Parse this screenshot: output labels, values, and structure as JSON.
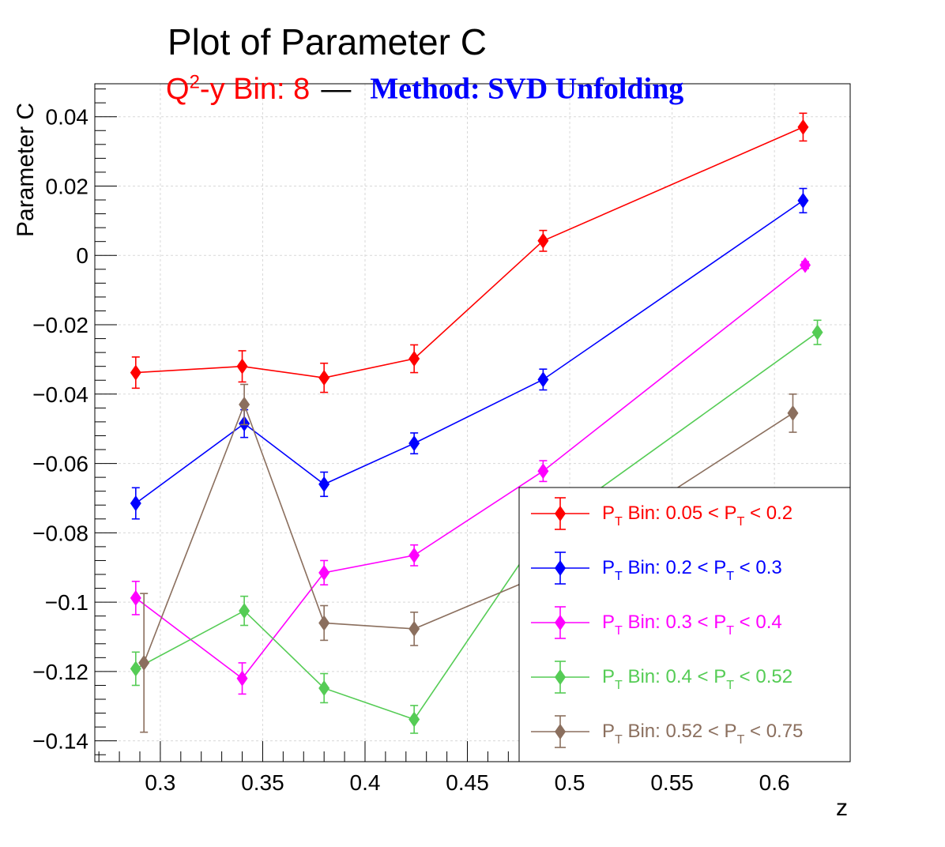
{
  "chart_data": {
    "type": "line",
    "title": "Plot of Parameter C",
    "subtitle": {
      "bin_prefix": "Q",
      "bin_sup": "2",
      "bin_rest": "-y Bin: 8",
      "separator": "—",
      "method": "Method: SVD Unfolding"
    },
    "xlabel": "z",
    "ylabel": "Parameter C",
    "xlim": [
      0.268,
      0.637
    ],
    "ylim": [
      -0.146,
      0.0495
    ],
    "x_ticks": [
      "0.3",
      "0.35",
      "0.4",
      "0.45",
      "0.5",
      "0.55",
      "0.6"
    ],
    "y_ticks": [
      "0.04",
      "0.02",
      "0",
      "−0.02",
      "−0.04",
      "−0.06",
      "−0.08",
      "−0.1",
      "−0.12",
      "−0.14"
    ],
    "grid": true,
    "legend_placement": "bottom-right",
    "series": [
      {
        "label_pre": "P",
        "label_sub1": "T",
        "label_mid": " Bin: 0.05 < P",
        "label_sub2": "T",
        "label_post": " < 0.2",
        "color": "#ff0000",
        "points": [
          {
            "x": 0.288,
            "y": -0.0338,
            "err": 0.0045
          },
          {
            "x": 0.34,
            "y": -0.032,
            "err": 0.0045
          },
          {
            "x": 0.38,
            "y": -0.0353,
            "err": 0.0042
          },
          {
            "x": 0.424,
            "y": -0.0298,
            "err": 0.004
          },
          {
            "x": 0.487,
            "y": 0.0042,
            "err": 0.003
          },
          {
            "x": 0.614,
            "y": 0.037,
            "err": 0.004
          }
        ]
      },
      {
        "label_pre": "P",
        "label_sub1": "T",
        "label_mid": " Bin: 0.2 < P",
        "label_sub2": "T",
        "label_post": " < 0.3",
        "color": "#0000ff",
        "points": [
          {
            "x": 0.288,
            "y": -0.0715,
            "err": 0.0045
          },
          {
            "x": 0.341,
            "y": -0.0485,
            "err": 0.004
          },
          {
            "x": 0.38,
            "y": -0.066,
            "err": 0.0035
          },
          {
            "x": 0.424,
            "y": -0.0542,
            "err": 0.003
          },
          {
            "x": 0.487,
            "y": -0.0358,
            "err": 0.003
          },
          {
            "x": 0.614,
            "y": 0.0158,
            "err": 0.0035
          }
        ]
      },
      {
        "label_pre": "P",
        "label_sub1": "T",
        "label_mid": " Bin: 0.3 < P",
        "label_sub2": "T",
        "label_post": " < 0.4",
        "color": "#ff00ff",
        "points": [
          {
            "x": 0.288,
            "y": -0.0988,
            "err": 0.0048
          },
          {
            "x": 0.34,
            "y": -0.122,
            "err": 0.0045
          },
          {
            "x": 0.38,
            "y": -0.0915,
            "err": 0.0035
          },
          {
            "x": 0.424,
            "y": -0.0865,
            "err": 0.003
          },
          {
            "x": 0.487,
            "y": -0.0622,
            "err": 0.003
          },
          {
            "x": 0.615,
            "y": -0.0028,
            "err": 0.001
          }
        ]
      },
      {
        "label_pre": "P",
        "label_sub1": "T",
        "label_mid": " Bin: 0.4 < P",
        "label_sub2": "T",
        "label_post": " < 0.52",
        "color": "#55cc55",
        "points": [
          {
            "x": 0.288,
            "y": -0.1192,
            "err": 0.0048
          },
          {
            "x": 0.341,
            "y": -0.1025,
            "err": 0.0042
          },
          {
            "x": 0.38,
            "y": -0.1248,
            "err": 0.0042
          },
          {
            "x": 0.424,
            "y": -0.1338,
            "err": 0.004
          },
          {
            "x": 0.487,
            "y": -0.079,
            "err": 0.0035
          },
          {
            "x": 0.621,
            "y": -0.0222,
            "err": 0.0035
          }
        ]
      },
      {
        "label_pre": "P",
        "label_sub1": "T",
        "label_mid": " Bin: 0.52 < P",
        "label_sub2": "T",
        "label_post": " < 0.75",
        "color": "#8b6f5e",
        "points": [
          {
            "x": 0.292,
            "y": -0.1175,
            "err": 0.02
          },
          {
            "x": 0.341,
            "y": -0.043,
            "err": 0.0058
          },
          {
            "x": 0.38,
            "y": -0.106,
            "err": 0.005
          },
          {
            "x": 0.424,
            "y": -0.1077,
            "err": 0.0048
          },
          {
            "x": 0.487,
            "y": -0.092,
            "err": 0.0045
          },
          {
            "x": 0.609,
            "y": -0.0455,
            "err": 0.0055
          }
        ]
      }
    ]
  }
}
